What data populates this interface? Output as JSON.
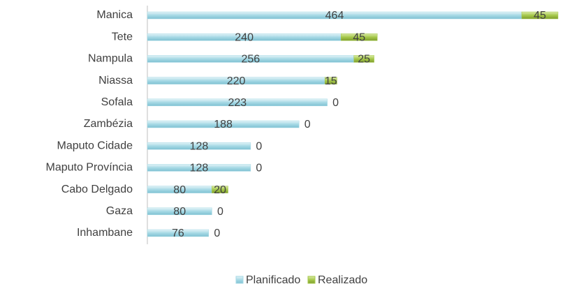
{
  "chart_data": {
    "type": "bar",
    "orientation": "horizontal",
    "stacked": true,
    "categories": [
      "Manica",
      "Tete",
      "Nampula",
      "Niassa",
      "Sofala",
      "Zambézia",
      "Maputo Cidade",
      "Maputo Província",
      "Cabo Delgado",
      "Gaza",
      "Inhambane"
    ],
    "series": [
      {
        "name": "Planificado",
        "color": "#a6d9e5",
        "values": [
          464,
          240,
          256,
          220,
          223,
          188,
          128,
          128,
          80,
          80,
          76
        ]
      },
      {
        "name": "Realizado",
        "color": "#a5c84a",
        "values": [
          45,
          45,
          25,
          15,
          0,
          0,
          0,
          0,
          20,
          0,
          0
        ]
      }
    ],
    "legend": "bottom"
  }
}
